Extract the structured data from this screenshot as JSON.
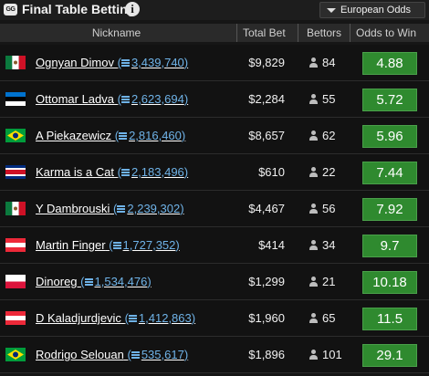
{
  "app": {
    "logo_text": "GG",
    "title": "Final Table Betting",
    "odds_format": "European Odds"
  },
  "columns": {
    "nickname": "Nickname",
    "total_bet": "Total Bet",
    "bettors": "Bettors",
    "odds": "Odds to Win"
  },
  "players": [
    {
      "flag": "mexico",
      "name": "Ognyan Dimov",
      "chips": "(3,439,740)",
      "total_bet": "$9,829",
      "bettors": "84",
      "odds": "4.88"
    },
    {
      "flag": "estonia",
      "name": "Ottomar Ladva",
      "chips": "(2,623,694)",
      "total_bet": "$2,284",
      "bettors": "55",
      "odds": "5.72"
    },
    {
      "flag": "brazil",
      "name": "A Piekazewicz",
      "chips": "(2,816,460)",
      "total_bet": "$8,657",
      "bettors": "62",
      "odds": "5.96"
    },
    {
      "flag": "costa-rica",
      "name": "Karma is a Cat",
      "chips": "(2,183,496)",
      "total_bet": "$610",
      "bettors": "22",
      "odds": "7.44"
    },
    {
      "flag": "mexico",
      "name": "Y Dambrouski",
      "chips": "(2,239,302)",
      "total_bet": "$4,467",
      "bettors": "56",
      "odds": "7.92"
    },
    {
      "flag": "austria",
      "name": "Martin Finger",
      "chips": "(1,727,352)",
      "total_bet": "$414",
      "bettors": "34",
      "odds": "9.7"
    },
    {
      "flag": "poland",
      "name": "Dinoreg",
      "chips": "(1,534,476)",
      "total_bet": "$1,299",
      "bettors": "21",
      "odds": "10.18"
    },
    {
      "flag": "austria",
      "name": "D Kaladjurdjevic",
      "chips": "(1,412,863)",
      "total_bet": "$1,960",
      "bettors": "65",
      "odds": "11.5"
    },
    {
      "flag": "brazil",
      "name": "Rodrigo Selouan",
      "chips": "(535,617)",
      "total_bet": "$1,896",
      "bettors": "101",
      "odds": "29.1"
    }
  ],
  "colors": {
    "odds_green": "#2f8a2f",
    "chip_blue": "#6fb3e8"
  }
}
